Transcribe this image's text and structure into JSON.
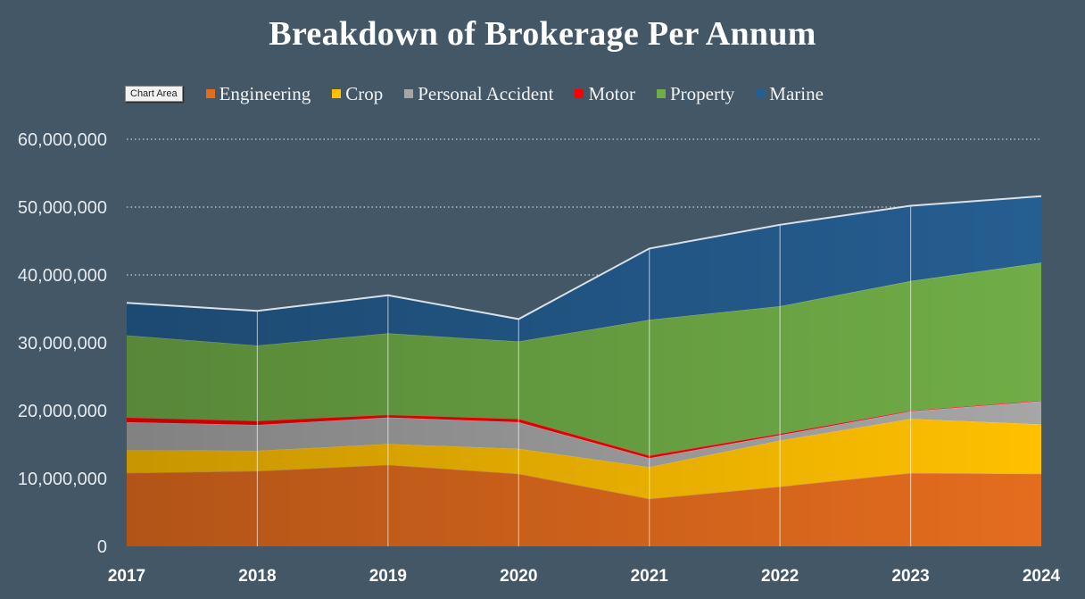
{
  "chart_area_tooltip": "Chart Area",
  "chart_data": {
    "type": "area",
    "stacked": true,
    "title": "Breakdown of Brokerage Per Annum",
    "x": [
      "2017",
      "2018",
      "2019",
      "2020",
      "2021",
      "2022",
      "2023",
      "2024"
    ],
    "series": [
      {
        "name": "Engineering",
        "color": "#e46c1e",
        "values": [
          10800000,
          11100000,
          12000000,
          10700000,
          7000000,
          8800000,
          10800000,
          10700000
        ]
      },
      {
        "name": "Crop",
        "color": "#ffc000",
        "values": [
          3400000,
          3000000,
          3100000,
          3700000,
          4700000,
          6800000,
          8000000,
          7300000
        ]
      },
      {
        "name": "Personal Accident",
        "color": "#a6a6a6",
        "values": [
          4100000,
          3800000,
          3900000,
          3900000,
          1300000,
          800000,
          1100000,
          3400000
        ]
      },
      {
        "name": "Motor",
        "color": "#ff0000",
        "values": [
          700000,
          600000,
          400000,
          500000,
          400000,
          200000,
          100000,
          100000
        ]
      },
      {
        "name": "Property",
        "color": "#70ad47",
        "values": [
          12100000,
          11100000,
          12000000,
          11400000,
          20000000,
          18800000,
          19100000,
          20300000
        ]
      },
      {
        "name": "Marine",
        "color": "#255e91",
        "values": [
          4800000,
          5100000,
          5600000,
          3300000,
          10500000,
          12000000,
          11100000,
          9800000
        ]
      }
    ],
    "ylim": [
      0,
      60000000
    ],
    "yticks": [
      "0",
      "10,000,000",
      "20,000,000",
      "30,000,000",
      "40,000,000",
      "50,000,000",
      "60,000,000"
    ],
    "grid": true,
    "legend": "top"
  }
}
